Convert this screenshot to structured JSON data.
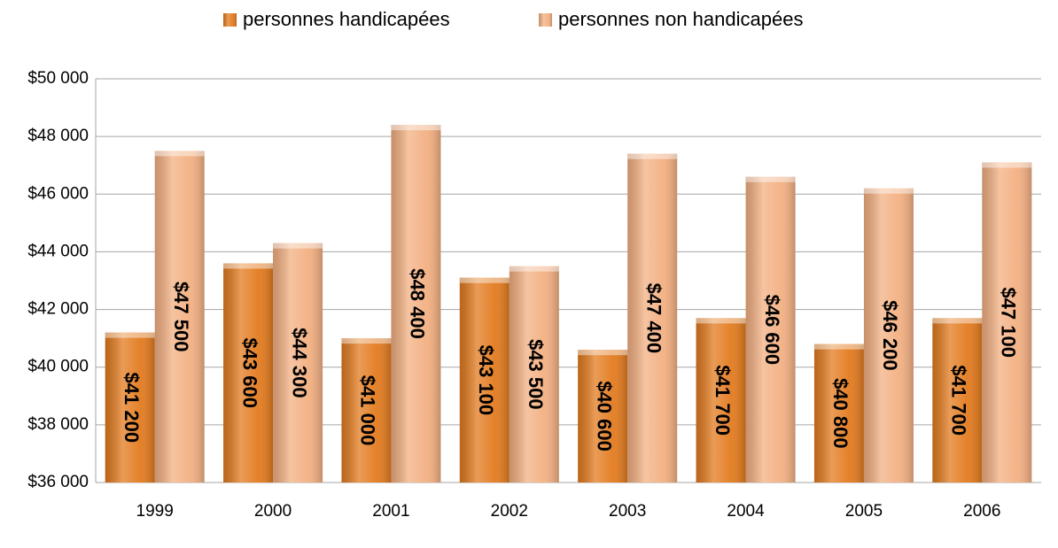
{
  "chart_data": {
    "type": "bar",
    "categories": [
      "1999",
      "2000",
      "2001",
      "2002",
      "2003",
      "2004",
      "2005",
      "2006"
    ],
    "series": [
      {
        "name": "personnes handicapées",
        "color": "#e37b1f",
        "values": [
          41200,
          43600,
          41000,
          43100,
          40600,
          41700,
          40800,
          41700
        ],
        "value_labels": [
          "$41 200",
          "$43 600",
          "$41 000",
          "$43 100",
          "$40 600",
          "$41 700",
          "$40 800",
          "$41 700"
        ]
      },
      {
        "name": "personnes non handicapées",
        "color": "#f3b082",
        "values": [
          47500,
          44300,
          48400,
          43500,
          47400,
          46600,
          46200,
          47100
        ],
        "value_labels": [
          "$47 500",
          "$44 300",
          "$48 400",
          "$43 500",
          "$47 400",
          "$46 600",
          "$46 200",
          "$47 100"
        ]
      }
    ],
    "ylim": [
      36000,
      50000
    ],
    "yticks": [
      {
        "value": 36000,
        "label": "$36 000"
      },
      {
        "value": 38000,
        "label": "$38 000"
      },
      {
        "value": 40000,
        "label": "$40 000"
      },
      {
        "value": 42000,
        "label": "$42 000"
      },
      {
        "value": 44000,
        "label": "$44 000"
      },
      {
        "value": 46000,
        "label": "$46 000"
      },
      {
        "value": 48000,
        "label": "$48 000"
      },
      {
        "value": 50000,
        "label": "$50 000"
      }
    ],
    "grid": true,
    "legend": "top"
  }
}
